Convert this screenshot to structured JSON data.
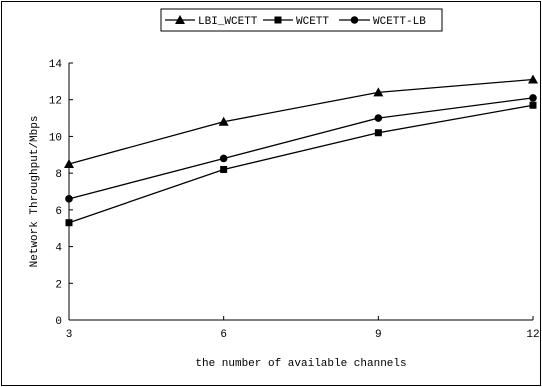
{
  "chart_data": {
    "type": "line",
    "x": [
      3,
      6,
      9,
      12
    ],
    "xlabel": "the number of available channels",
    "ylabel": "Network Throughput/Mbps",
    "xlim": [
      3,
      12
    ],
    "ylim": [
      0,
      14
    ],
    "xticks": [
      "3",
      "6",
      "9",
      "12"
    ],
    "yticks": [
      "0",
      "2",
      "4",
      "6",
      "8",
      "10",
      "12",
      "14"
    ],
    "grid": false,
    "legend_position": "top-center",
    "series": [
      {
        "name": "LBI_WCETT",
        "marker": "triangle",
        "values": [
          8.5,
          10.8,
          12.4,
          13.1
        ]
      },
      {
        "name": "WCETT",
        "marker": "square",
        "values": [
          5.3,
          8.2,
          10.2,
          11.7
        ]
      },
      {
        "name": "WCETT-LB",
        "marker": "circle",
        "values": [
          6.6,
          8.8,
          11.0,
          12.1
        ]
      }
    ],
    "colors": {
      "line": "#000000",
      "background": "#ffffff"
    }
  }
}
